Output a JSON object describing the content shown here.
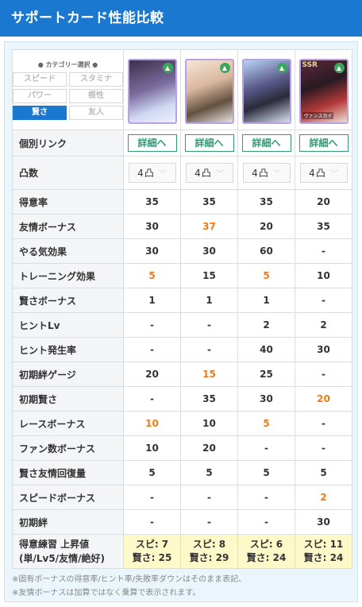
{
  "header": {
    "title": "サポートカード性能比較"
  },
  "category": {
    "title": "● カテゴリー選択 ●",
    "options": [
      {
        "label": "スピード",
        "active": false
      },
      {
        "label": "スタミナ",
        "active": false
      },
      {
        "label": "パワー",
        "active": false
      },
      {
        "label": "根性",
        "active": false
      },
      {
        "label": "賢さ",
        "active": true
      },
      {
        "label": "友人",
        "active": false
      }
    ]
  },
  "cards": [
    {
      "image": "card-1-portrait",
      "rarity": "",
      "name": "",
      "badge": "hat-icon"
    },
    {
      "image": "card-2-portrait",
      "rarity": "",
      "name": "",
      "badge": "hat-icon"
    },
    {
      "image": "card-3-portrait",
      "rarity": "",
      "name": "",
      "badge": "hat-icon"
    },
    {
      "image": "card-4-portrait",
      "rarity": "SSR",
      "name": "ヴァンスカイ",
      "badge": "hat-icon"
    }
  ],
  "link_row": {
    "label": "個別リンク",
    "button": "詳細へ"
  },
  "level_row": {
    "label": "凸数",
    "value": "4",
    "icon": "limit-break-icon"
  },
  "rows": [
    {
      "label": "得意率",
      "values": [
        "35",
        "35",
        "35",
        "20"
      ],
      "highlight": [
        false,
        false,
        false,
        false
      ]
    },
    {
      "label": "友情ボーナス",
      "values": [
        "30",
        "37",
        "20",
        "35"
      ],
      "highlight": [
        false,
        true,
        false,
        false
      ]
    },
    {
      "label": "やる気効果",
      "values": [
        "30",
        "30",
        "60",
        "-"
      ],
      "highlight": [
        false,
        false,
        false,
        false
      ]
    },
    {
      "label": "トレーニング効果",
      "values": [
        "5",
        "15",
        "5",
        "10"
      ],
      "highlight": [
        true,
        false,
        true,
        false
      ]
    },
    {
      "label": "賢さボーナス",
      "values": [
        "1",
        "1",
        "1",
        "-"
      ],
      "highlight": [
        false,
        false,
        false,
        false
      ]
    },
    {
      "label": "ヒントLv",
      "values": [
        "-",
        "-",
        "2",
        "2"
      ],
      "highlight": [
        false,
        false,
        false,
        false
      ]
    },
    {
      "label": "ヒント発生率",
      "values": [
        "-",
        "-",
        "40",
        "30"
      ],
      "highlight": [
        false,
        false,
        false,
        false
      ]
    },
    {
      "label": "初期絆ゲージ",
      "values": [
        "20",
        "15",
        "25",
        "-"
      ],
      "highlight": [
        false,
        true,
        false,
        false
      ]
    },
    {
      "label": "初期賢さ",
      "values": [
        "-",
        "35",
        "30",
        "20"
      ],
      "highlight": [
        false,
        false,
        false,
        true
      ]
    },
    {
      "label": "レースボーナス",
      "values": [
        "10",
        "10",
        "5",
        "-"
      ],
      "highlight": [
        true,
        false,
        true,
        false
      ]
    },
    {
      "label": "ファン数ボーナス",
      "values": [
        "10",
        "20",
        "-",
        "-"
      ],
      "highlight": [
        false,
        false,
        false,
        false
      ]
    },
    {
      "label": "賢さ友情回復量",
      "values": [
        "5",
        "5",
        "5",
        "5"
      ],
      "highlight": [
        false,
        false,
        false,
        false
      ]
    },
    {
      "label": "スピードボーナス",
      "values": [
        "-",
        "-",
        "-",
        "2"
      ],
      "highlight": [
        false,
        false,
        false,
        true
      ]
    },
    {
      "label": "初期絆",
      "values": [
        "-",
        "-",
        "-",
        "30"
      ],
      "highlight": [
        false,
        false,
        false,
        false
      ]
    }
  ],
  "footer_row": {
    "label_line1": "得意練習 上昇値",
    "label_line2": "(単/Lv5/友情/絶好)",
    "values": [
      {
        "line1": "スピ: 7",
        "line2": "賢さ: 25"
      },
      {
        "line1": "スピ: 8",
        "line2": "賢さ: 29"
      },
      {
        "line1": "スピ: 6",
        "line2": "賢さ: 24"
      },
      {
        "line1": "スピ: 11",
        "line2": "賢さ: 24"
      }
    ]
  },
  "notes": [
    "※固有ボーナスの得意率/ヒント率/失敗率ダウンはそのまま表記、",
    "※友情ボーナスは加算ではなく乗算で表示されます。"
  ],
  "colors": {
    "accent": "#1b78d0",
    "highlight": "#ef7b14",
    "link": "#2f9c74",
    "footer_bg": "#fdf9c8"
  }
}
